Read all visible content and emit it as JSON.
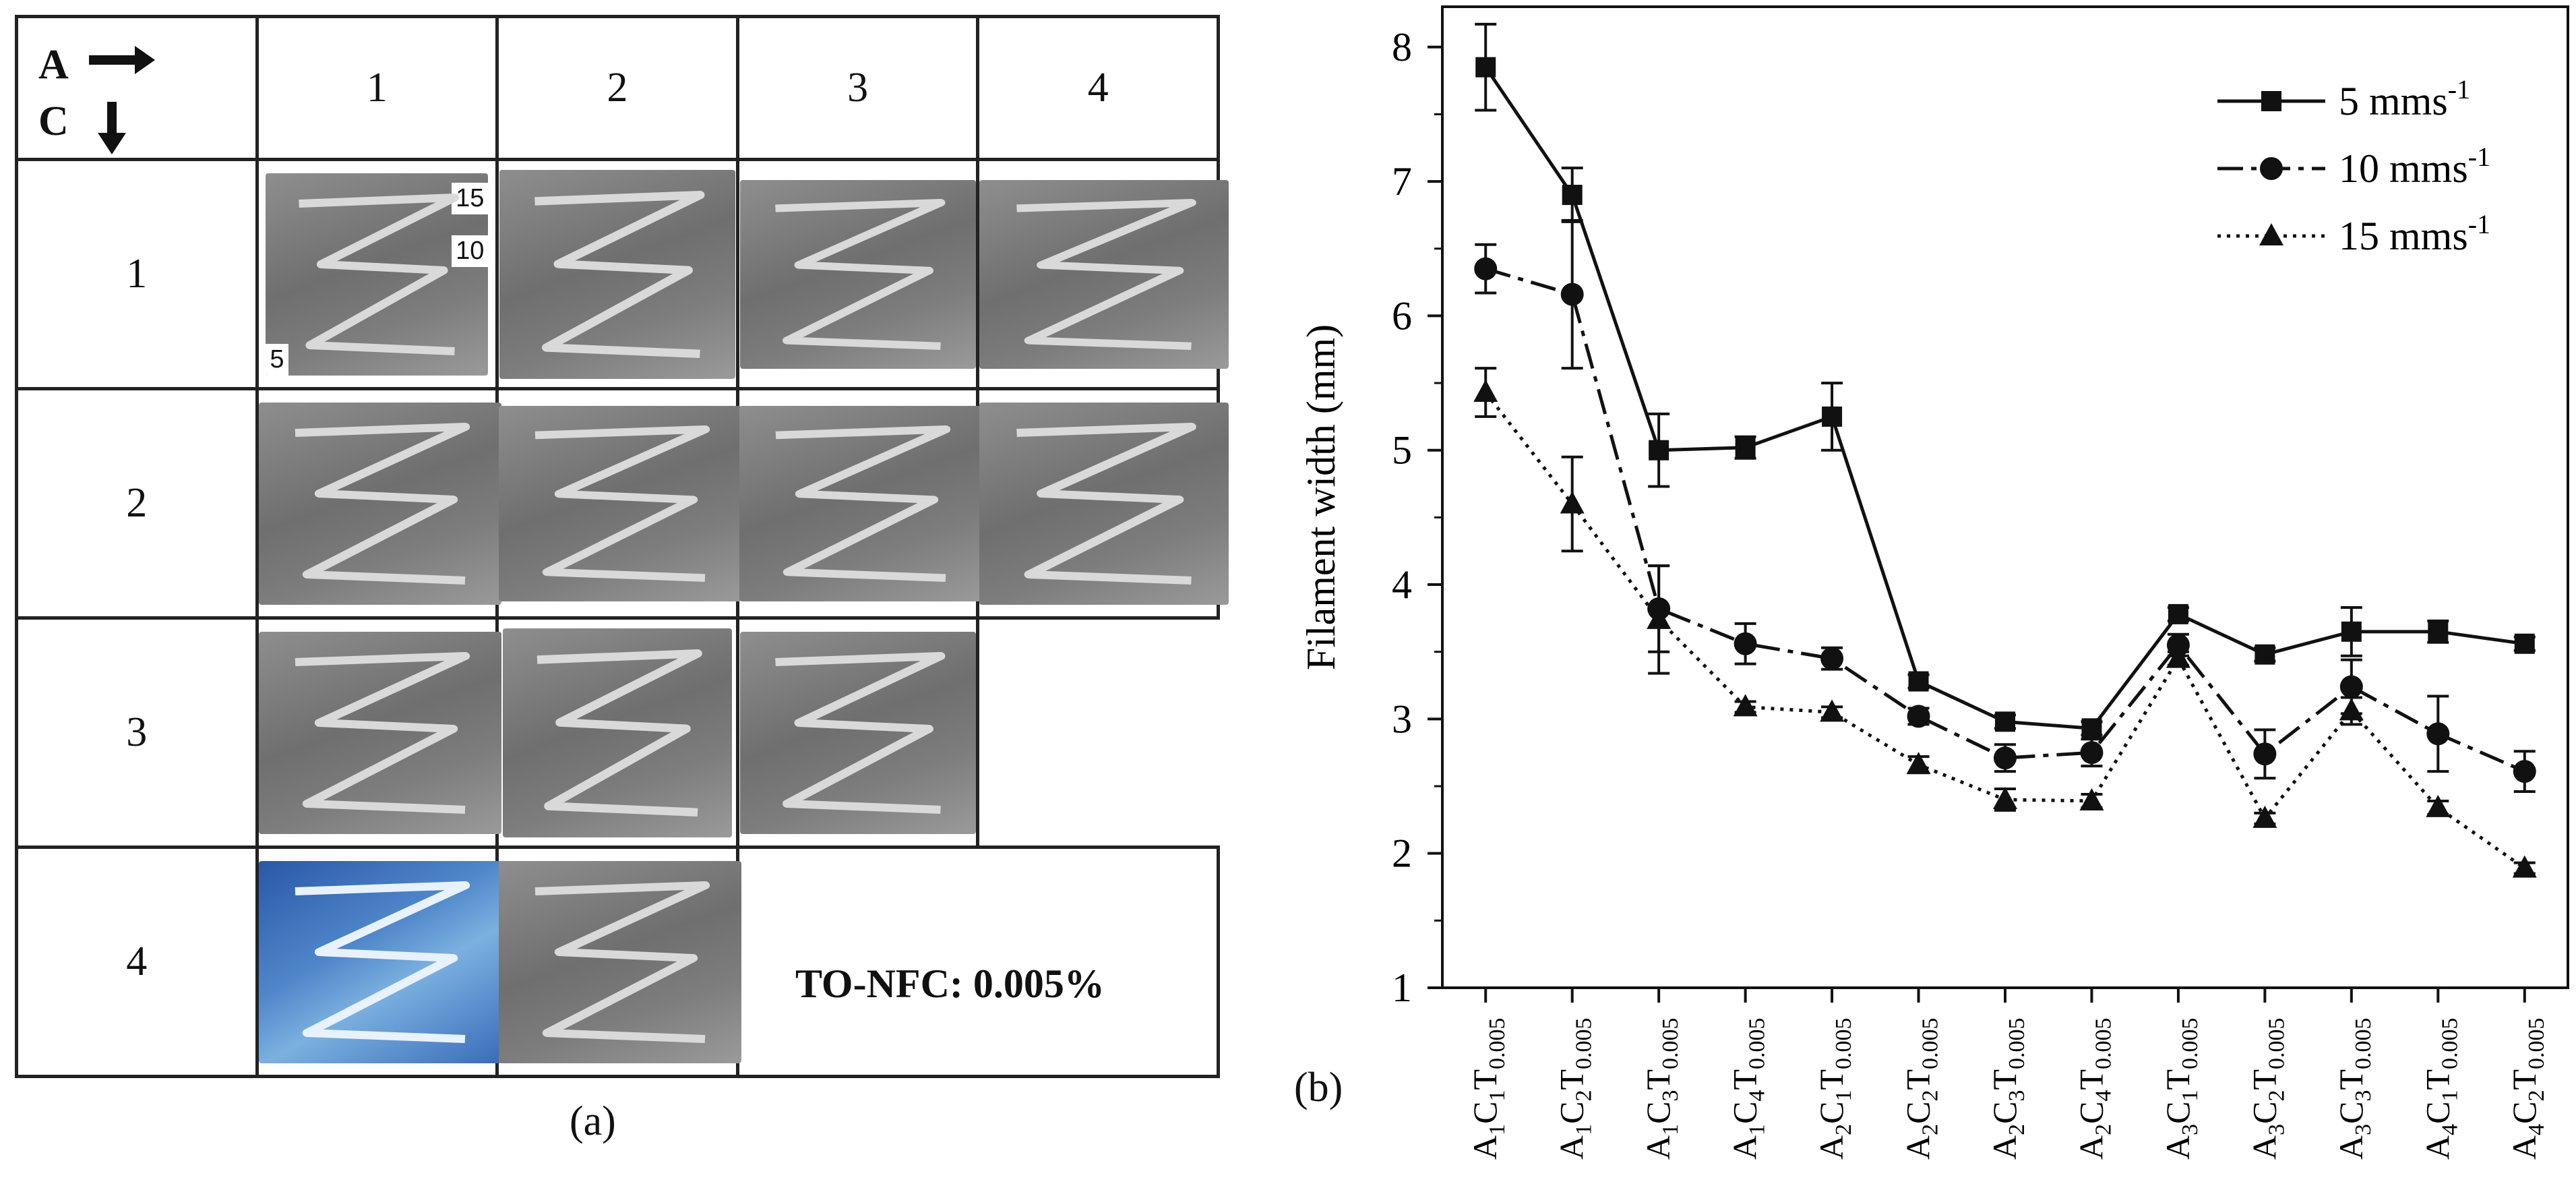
{
  "panel_a": {
    "corner_top": "A",
    "corner_bottom": "C",
    "col_headers": [
      "1",
      "2",
      "3",
      "4"
    ],
    "row_headers": [
      "1",
      "2",
      "3",
      "4"
    ],
    "speed_labels": [
      "15",
      "10",
      "5"
    ],
    "note": "TO-NFC: 0.005%",
    "caption": "(a)",
    "present_cells": [
      [
        1,
        1,
        1,
        1
      ],
      [
        1,
        1,
        1,
        1
      ],
      [
        1,
        1,
        1,
        0
      ],
      [
        1,
        1,
        0,
        0
      ]
    ],
    "blue_cell": [
      4,
      1
    ]
  },
  "panel_b_caption": "(b)",
  "chart_data": {
    "type": "line",
    "ylabel": "Filament width (mm)",
    "xlabel": "",
    "ylim": [
      1,
      8.3
    ],
    "yticks": [
      1,
      2,
      3,
      4,
      5,
      6,
      7,
      8
    ],
    "categories": [
      {
        "a": "1",
        "c": "1",
        "t": "0.005"
      },
      {
        "a": "1",
        "c": "2",
        "t": "0.005"
      },
      {
        "a": "1",
        "c": "3",
        "t": "0.005"
      },
      {
        "a": "1",
        "c": "4",
        "t": "0.005"
      },
      {
        "a": "2",
        "c": "1",
        "t": "0.005"
      },
      {
        "a": "2",
        "c": "2",
        "t": "0.005"
      },
      {
        "a": "2",
        "c": "3",
        "t": "0.005"
      },
      {
        "a": "2",
        "c": "4",
        "t": "0.005"
      },
      {
        "a": "3",
        "c": "1",
        "t": "0.005"
      },
      {
        "a": "3",
        "c": "2",
        "t": "0.005"
      },
      {
        "a": "3",
        "c": "3",
        "t": "0.005"
      },
      {
        "a": "4",
        "c": "1",
        "t": "0.005"
      },
      {
        "a": "4",
        "c": "2",
        "t": "0.005"
      }
    ],
    "legend_position": "top-right",
    "series": [
      {
        "name_base": "5 mms",
        "name_sup": "-1",
        "marker": "square",
        "line": "solid",
        "values": [
          7.85,
          6.9,
          5.0,
          5.02,
          5.25,
          3.28,
          2.98,
          2.93,
          3.78,
          3.48,
          3.65,
          3.65,
          3.56
        ],
        "errors": [
          0.32,
          0.2,
          0.27,
          0.08,
          0.25,
          0.05,
          0.05,
          0.05,
          0.05,
          0.05,
          0.18,
          0.08,
          0.05
        ]
      },
      {
        "name_base": "10 mms",
        "name_sup": "-1",
        "marker": "circle",
        "line": "dashdot",
        "values": [
          6.35,
          6.16,
          3.82,
          3.56,
          3.45,
          3.02,
          2.71,
          2.75,
          3.55,
          2.74,
          3.24,
          2.89,
          2.61
        ],
        "errors": [
          0.18,
          0.55,
          0.32,
          0.15,
          0.08,
          0.06,
          0.1,
          0.1,
          0.08,
          0.18,
          0.2,
          0.28,
          0.15
        ]
      },
      {
        "name_base": "15 mms",
        "name_sup": "-1",
        "marker": "triangle",
        "line": "dotted",
        "values": [
          5.43,
          4.6,
          3.74,
          3.09,
          3.05,
          2.66,
          2.4,
          2.39,
          3.45,
          2.26,
          3.06,
          2.34,
          1.89
        ],
        "errors": [
          0.18,
          0.35,
          0.4,
          0.04,
          0.04,
          0.06,
          0.08,
          0.05,
          0.05,
          0.04,
          0.1,
          0.05,
          0.04
        ]
      }
    ]
  }
}
